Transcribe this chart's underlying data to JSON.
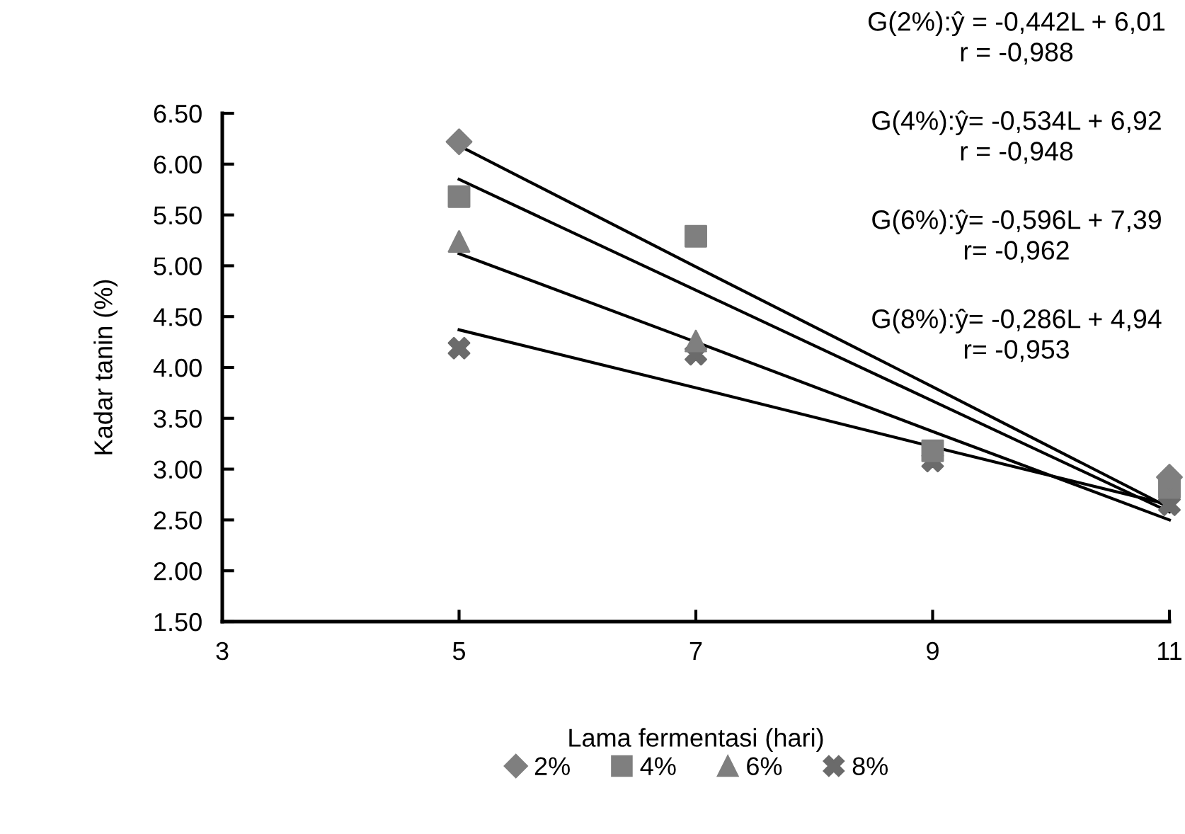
{
  "chart_data": {
    "type": "scatter",
    "xlabel": "Lama fermentasi (hari)",
    "ylabel": "Kadar tanin (%)",
    "x": [
      5,
      7,
      9,
      11
    ],
    "series": [
      {
        "name": "2%",
        "color": "#7f7f7f",
        "marker": "diamond",
        "values": [
          6.22,
          null,
          null,
          2.92
        ]
      },
      {
        "name": "4%",
        "color": "#7f7f7f",
        "marker": "square",
        "values": [
          5.68,
          5.29,
          3.18,
          2.82
        ]
      },
      {
        "name": "6%",
        "color": "#7f7f7f",
        "marker": "triangle",
        "values": [
          5.24,
          4.26,
          null,
          null
        ]
      },
      {
        "name": "8%",
        "color": "#6b6b6b",
        "marker": "cross",
        "values": [
          4.19,
          4.13,
          3.08,
          2.65
        ]
      },
      {
        "type": "line",
        "color": "#000000",
        "marker": "none",
        "values": [
          6.18,
          4.99,
          3.81,
          2.62
        ]
      },
      {
        "type": "line",
        "color": "#000000",
        "marker": "none",
        "values": [
          5.85,
          4.76,
          3.67,
          2.58
        ]
      },
      {
        "type": "line",
        "color": "#000000",
        "marker": "none",
        "values": [
          5.12,
          4.25,
          3.37,
          2.5
        ]
      },
      {
        "type": "line",
        "color": "#000000",
        "marker": "none",
        "values": [
          4.37,
          3.8,
          3.22,
          2.65
        ]
      }
    ],
    "xlim": [
      3,
      11
    ],
    "xticks": [
      3,
      5,
      7,
      9,
      11
    ],
    "ylim": [
      1.5,
      6.5
    ],
    "yticks": [
      {
        "value": 1.5,
        "label": "1.50"
      },
      {
        "value": 2,
        "label": "2.00"
      },
      {
        "value": 2.5,
        "label": "2.50"
      },
      {
        "value": 3,
        "label": "3.00"
      },
      {
        "value": 3.5,
        "label": "3.50"
      },
      {
        "value": 4,
        "label": "4.00"
      },
      {
        "value": 4.5,
        "label": "4.50"
      },
      {
        "value": 5,
        "label": "5.00"
      },
      {
        "value": 5.5,
        "label": "5.50"
      },
      {
        "value": 6,
        "label": "6.00"
      },
      {
        "value": 6.5,
        "label": "6.50"
      }
    ],
    "annotations": [
      "G(2%):ŷ = -0,442L + 6,01\nr = -0,988",
      "G(4%):ŷ= -0,534L + 6,92\nr = -0,948",
      "G(6%):ŷ= -0,596L + 7,39\nr= -0,962",
      "G(8%):ŷ= -0,286L + 4,94\nr= -0,953"
    ],
    "grid": false,
    "legend": "bottom"
  }
}
